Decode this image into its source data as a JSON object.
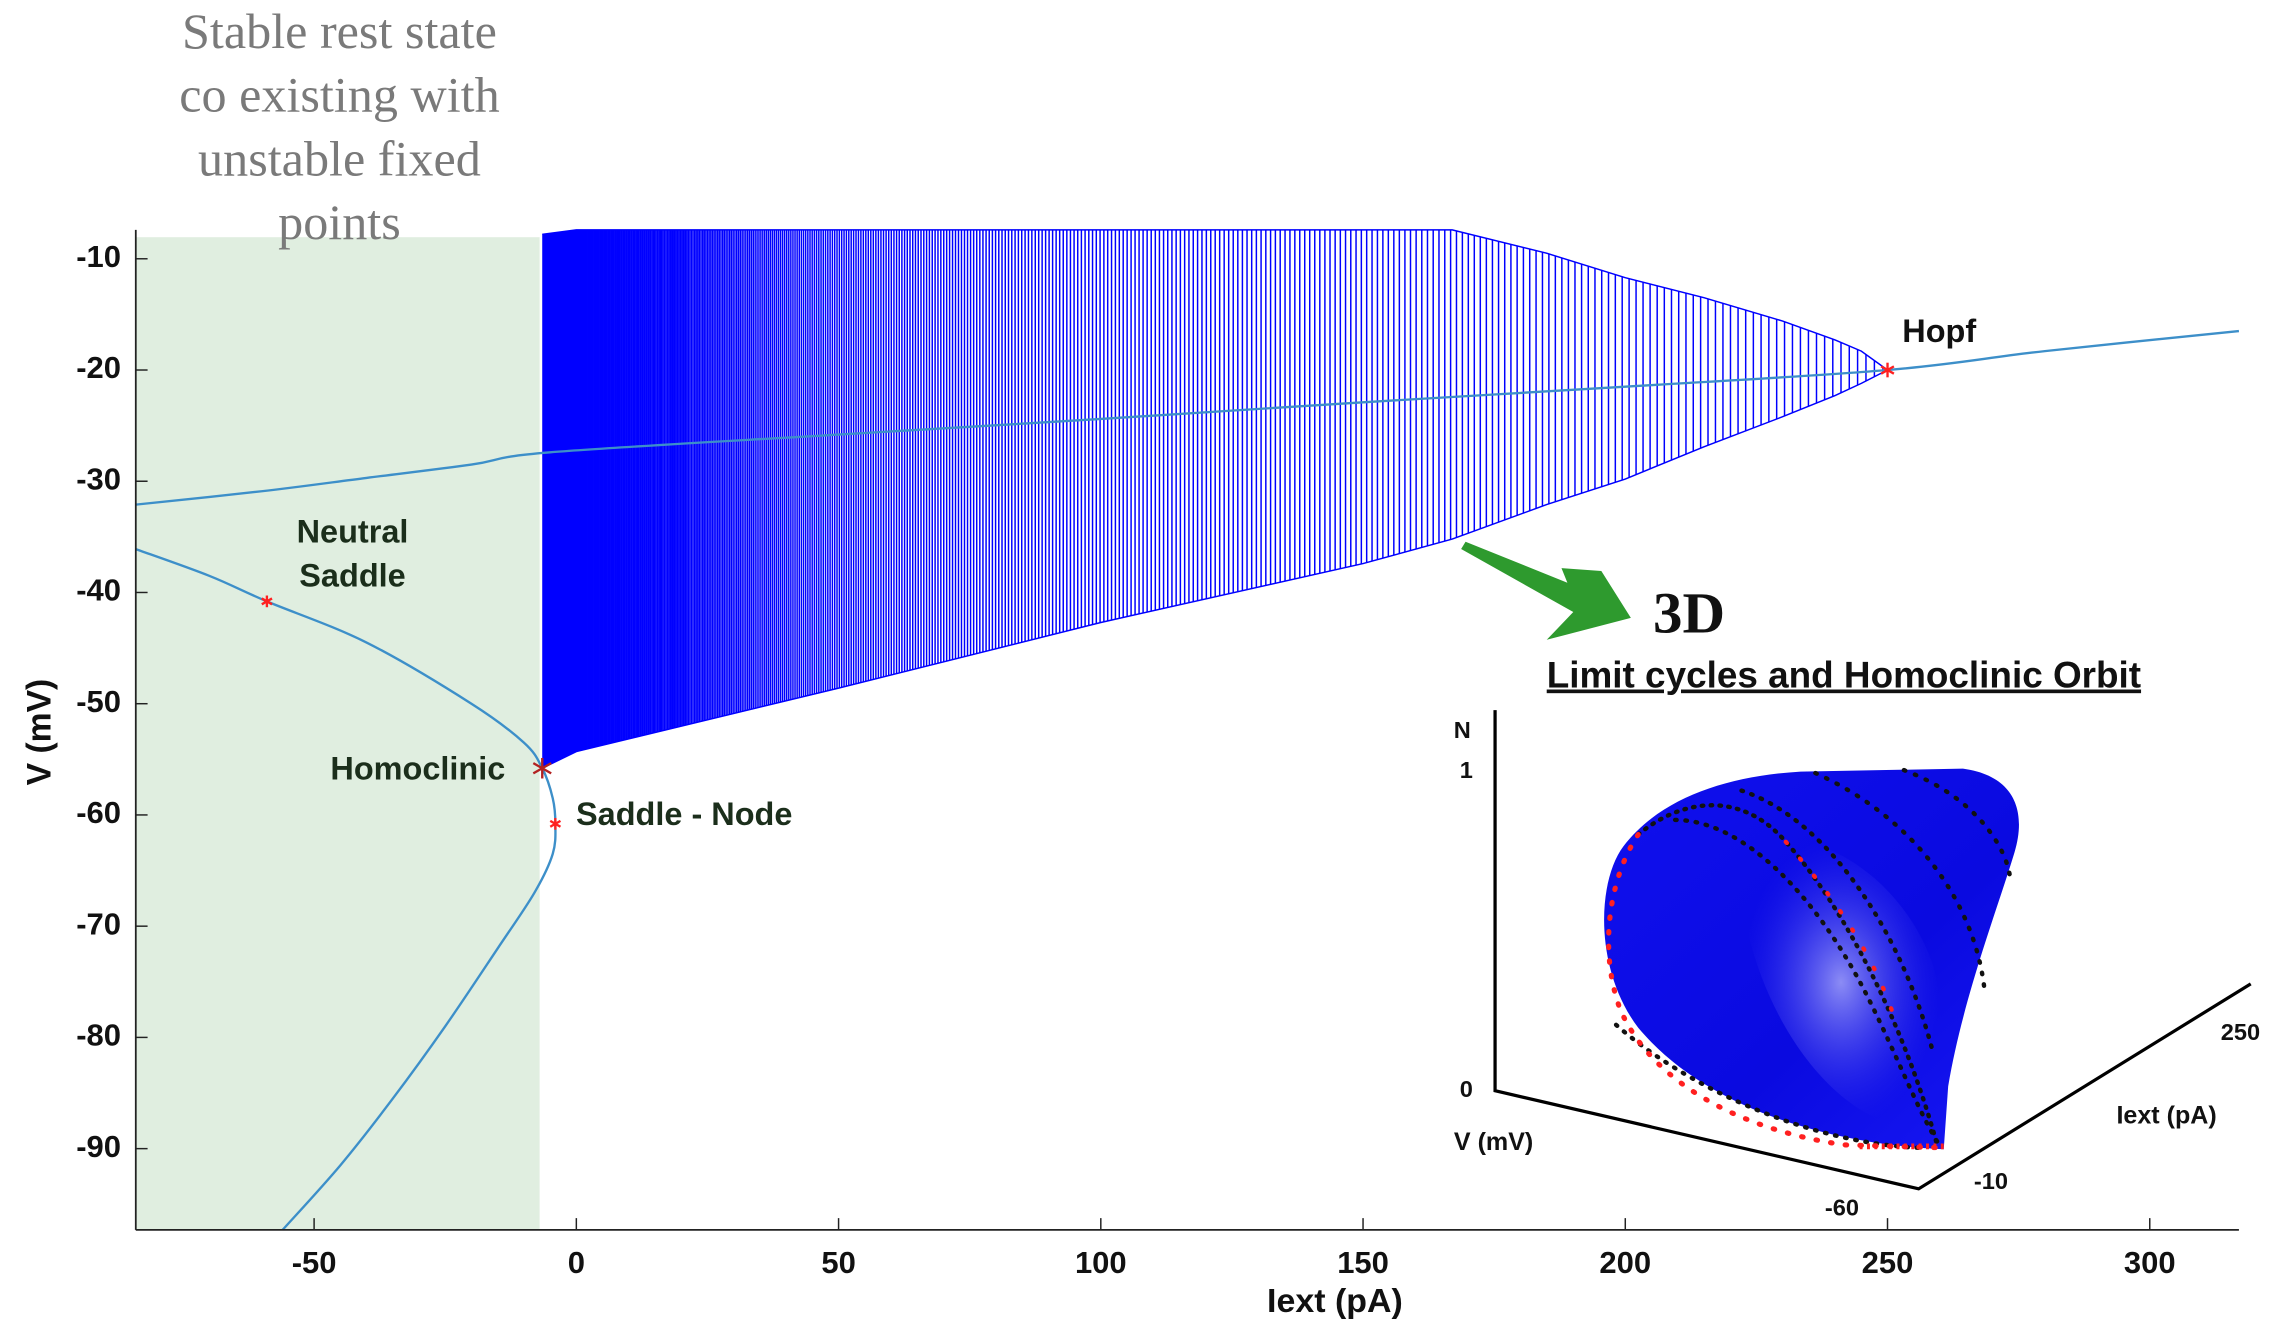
{
  "chart_data": {
    "type": "line",
    "xlabel": "Iext (pA)",
    "ylabel": "V (mV)",
    "xlim": [
      -84,
      317
    ],
    "ylim": [
      -97.3,
      -7.4
    ],
    "xticks": [
      -50,
      0,
      50,
      100,
      150,
      200,
      250,
      300
    ],
    "yticks": [
      -10,
      -20,
      -30,
      -40,
      -50,
      -60,
      -70,
      -80,
      -90
    ],
    "shaded_region": {
      "xlim": [
        -84,
        -7
      ],
      "color": "#e0eee0",
      "label_lines": [
        "Stable rest state",
        "co existing with",
        "unstable fixed",
        "points"
      ]
    },
    "series": [
      {
        "color": "#3d8fc9",
        "x": [
          -84,
          -60,
          -40,
          -20,
          -5,
          50,
          100,
          150,
          200,
          250,
          280,
          317
        ],
        "values": [
          -32.1,
          -30.9,
          -29.7,
          -28.5,
          -27.4,
          -25.8,
          -24.4,
          -22.9,
          -21.5,
          -20,
          -18.3,
          -16.5
        ]
      },
      {
        "color": "#3d8fc9",
        "x": [
          -84,
          -70,
          -59,
          -40,
          -20,
          -10,
          -6.5,
          -4.5,
          -4,
          -4.5,
          -8,
          -15,
          -25,
          -35,
          -45,
          -56
        ],
        "values": [
          -36.1,
          -38.5,
          -40.8,
          -44.5,
          -50,
          -53.5,
          -55.8,
          -58.5,
          -60.8,
          -63.5,
          -67,
          -72,
          -79,
          -85.5,
          -91.5,
          -97.3
        ]
      }
    ],
    "limit_cycles": {
      "color": "#0000ff",
      "x": [
        -6.5,
        0,
        50,
        100,
        150,
        167,
        185,
        200,
        215,
        230,
        240,
        245,
        250
      ],
      "max": [
        -7.8,
        -7.4,
        -7.4,
        -7.4,
        -7.4,
        -7.4,
        -9.5,
        -11.7,
        -13.5,
        -15.6,
        -17.3,
        -18.3,
        -20
      ],
      "min": [
        -55.8,
        -54.3,
        -48.6,
        -42.7,
        -37.4,
        -35.2,
        -32.1,
        -29.8,
        -26.9,
        -24.2,
        -22.3,
        -21.2,
        -20
      ]
    },
    "points": [
      {
        "label_lines": [
          "Hopf"
        ],
        "x": 250,
        "y": -20,
        "color": "#ff2020"
      },
      {
        "label_lines": [
          "Neutral",
          "Saddle"
        ],
        "x": -59,
        "y": -40.8,
        "color": "#ff2020"
      },
      {
        "label_lines": [
          "Homoclinic"
        ],
        "x": -6.5,
        "y": -55.8,
        "color": "#b22222"
      },
      {
        "label_lines": [
          "Saddle - Node"
        ],
        "x": -4,
        "y": -60.8,
        "color": "#ff2020"
      }
    ],
    "inset": {
      "tag": "3D",
      "title": "Limit cycles and Homoclinic Orbit",
      "zlabel": "N",
      "zticks": [
        1,
        0
      ],
      "vlabel": "V (mV)",
      "vticks": [
        -60,
        -10
      ],
      "ilabel": "Iext (pA)",
      "iticks": [
        250
      ]
    }
  }
}
